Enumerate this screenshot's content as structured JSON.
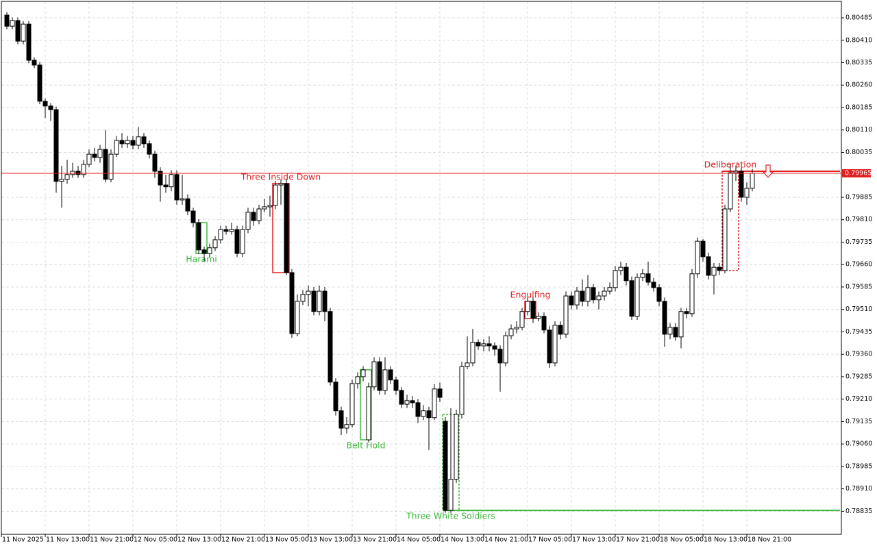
{
  "chart_data": {
    "type": "candlestick",
    "open": [
      0.80494,
      0.80457,
      0.80476,
      0.80407,
      0.80464,
      0.80343,
      0.80327,
      0.80206,
      0.8019,
      0.80178,
      0.79938,
      0.79945,
      0.79961,
      0.79972,
      0.79961,
      0.79995,
      0.80029,
      0.80018,
      0.80045,
      0.79945,
      0.80029,
      0.80075,
      0.80064,
      0.80075,
      0.80059,
      0.80087,
      0.80064,
      0.80029,
      0.79972,
      0.79926,
      0.7992,
      0.79961,
      0.79876,
      0.7988,
      0.79839,
      0.798,
      0.79709,
      0.79697,
      0.79716,
      0.79743,
      0.79777,
      0.79771,
      0.79777,
      0.79697,
      0.79777,
      0.79835,
      0.79807,
      0.79846,
      0.79853,
      0.79858,
      0.79926,
      0.79931,
      0.79633,
      0.79429,
      0.79537,
      0.7956,
      0.79571,
      0.79503,
      0.79571,
      0.79503,
      0.79267,
      0.79171,
      0.79113,
      0.79125,
      0.79262,
      0.79285,
      0.79074,
      0.79251,
      0.79335,
      0.79239,
      0.79308,
      0.79274,
      0.79239,
      0.79193,
      0.79205,
      0.79198,
      0.79152,
      0.79171,
      0.79148,
      0.79244,
      0.79136,
      0.78838,
      0.78942,
      0.79159,
      0.79319,
      0.79331,
      0.794,
      0.79388,
      0.79395,
      0.79388,
      0.79377,
      0.79331,
      0.79422,
      0.79445,
      0.7945,
      0.79503,
      0.79537,
      0.7948,
      0.79487,
      0.79441,
      0.79331,
      0.79457,
      0.79427,
      0.79555,
      0.79525,
      0.79571,
      0.79537,
      0.79583,
      0.79542,
      0.79555,
      0.79571,
      0.79583,
      0.7964,
      0.79651,
      0.79606,
      0.79487,
      0.79617,
      0.79629,
      0.79601,
      0.79583,
      0.79537,
      0.79427,
      0.7945,
      0.79418,
      0.79503,
      0.79496,
      0.79629,
      0.79738,
      0.79686,
      0.79624,
      0.79651,
      0.7964,
      0.79846,
      0.79967,
      0.79972,
      0.79885,
      0.79915
    ],
    "high": [
      0.80504,
      0.80486,
      0.80486,
      0.80474,
      0.80474,
      0.80353,
      0.80337,
      0.80216,
      0.802,
      0.80188,
      0.7999,
      0.8001,
      0.8,
      0.7999,
      0.8001,
      0.80045,
      0.8005,
      0.8006,
      0.8011,
      0.80045,
      0.8009,
      0.801,
      0.8009,
      0.8009,
      0.8012,
      0.801,
      0.80075,
      0.8004,
      0.79985,
      0.7996,
      0.79975,
      0.79975,
      0.7996,
      0.79895,
      0.7985,
      0.79812,
      0.7972,
      0.7973,
      0.79755,
      0.7979,
      0.7979,
      0.798,
      0.7979,
      0.7979,
      0.7985,
      0.7985,
      0.7986,
      0.7988,
      0.7989,
      0.7994,
      0.79945,
      0.79945,
      0.79645,
      0.7956,
      0.79575,
      0.7959,
      0.79585,
      0.7959,
      0.79585,
      0.79515,
      0.7928,
      0.79185,
      0.7915,
      0.79275,
      0.793,
      0.7932,
      0.79265,
      0.7935,
      0.7935,
      0.7935,
      0.7932,
      0.79285,
      0.7925,
      0.79225,
      0.7922,
      0.7921,
      0.7919,
      0.79185,
      0.7926,
      0.79265,
      0.7915,
      0.7918,
      0.79175,
      0.79335,
      0.7942,
      0.79445,
      0.7941,
      0.7941,
      0.7942,
      0.794,
      0.7939,
      0.79435,
      0.7946,
      0.7947,
      0.79515,
      0.7955,
      0.7955,
      0.795,
      0.795,
      0.79455,
      0.7947,
      0.7947,
      0.7957,
      0.7957,
      0.79585,
      0.7961,
      0.79625,
      0.79595,
      0.7957,
      0.79585,
      0.796,
      0.79655,
      0.7967,
      0.79665,
      0.7962,
      0.7963,
      0.79645,
      0.7967,
      0.79615,
      0.79595,
      0.7955,
      0.79465,
      0.79465,
      0.79515,
      0.79515,
      0.79645,
      0.7975,
      0.79745,
      0.797,
      0.79665,
      0.79665,
      0.7986,
      0.79995,
      0.7999,
      0.79985,
      0.79935,
      0.7998
    ],
    "low": [
      0.80447,
      0.80447,
      0.80397,
      0.80397,
      0.80333,
      0.80317,
      0.80196,
      0.8015,
      0.8014,
      0.799,
      0.7985,
      0.7993,
      0.7995,
      0.7995,
      0.7995,
      0.79985,
      0.80005,
      0.8,
      0.79935,
      0.79935,
      0.8002,
      0.8005,
      0.8005,
      0.80045,
      0.80045,
      0.8005,
      0.80015,
      0.7995,
      0.7987,
      0.799,
      0.79905,
      0.7986,
      0.7986,
      0.79825,
      0.79785,
      0.79695,
      0.7967,
      0.79685,
      0.79705,
      0.7973,
      0.7976,
      0.7976,
      0.79685,
      0.79685,
      0.79765,
      0.7979,
      0.79795,
      0.79835,
      0.7982,
      0.79845,
      0.7986,
      0.79625,
      0.79415,
      0.7942,
      0.79525,
      0.7952,
      0.7949,
      0.7949,
      0.7947,
      0.79255,
      0.79155,
      0.7909,
      0.79095,
      0.79115,
      0.79245,
      0.7927,
      0.79065,
      0.7924,
      0.79225,
      0.79225,
      0.7926,
      0.79225,
      0.7918,
      0.7918,
      0.7918,
      0.7913,
      0.7914,
      0.7904,
      0.7914,
      0.792,
      0.7883,
      0.7883,
      0.7893,
      0.79145,
      0.7931,
      0.7932,
      0.79375,
      0.7937,
      0.7937,
      0.79355,
      0.79235,
      0.7932,
      0.7941,
      0.7943,
      0.7944,
      0.7949,
      0.79465,
      0.7947,
      0.7943,
      0.79315,
      0.7932,
      0.7941,
      0.79415,
      0.7951,
      0.7951,
      0.7952,
      0.7952,
      0.7953,
      0.7951,
      0.7954,
      0.7956,
      0.7957,
      0.79625,
      0.7959,
      0.79475,
      0.79475,
      0.79605,
      0.7959,
      0.7957,
      0.7952,
      0.79385,
      0.7941,
      0.79405,
      0.7938,
      0.7948,
      0.79485,
      0.79615,
      0.7967,
      0.7961,
      0.7956,
      0.79625,
      0.7963,
      0.79835,
      0.7994,
      0.7987,
      0.7986,
      0.79905
    ],
    "close": [
      0.80457,
      0.80476,
      0.80407,
      0.80464,
      0.80343,
      0.80327,
      0.80206,
      0.8019,
      0.80178,
      0.79938,
      0.79945,
      0.79961,
      0.79972,
      0.79961,
      0.79995,
      0.80029,
      0.80018,
      0.80045,
      0.79945,
      0.80029,
      0.80075,
      0.80064,
      0.80075,
      0.80059,
      0.80087,
      0.80064,
      0.80029,
      0.79972,
      0.79926,
      0.7992,
      0.79961,
      0.79876,
      0.7988,
      0.79839,
      0.798,
      0.79709,
      0.79697,
      0.79716,
      0.79743,
      0.79777,
      0.79771,
      0.79777,
      0.79697,
      0.79777,
      0.79835,
      0.79807,
      0.79846,
      0.79853,
      0.79858,
      0.79926,
      0.79931,
      0.79633,
      0.79429,
      0.79537,
      0.7956,
      0.79571,
      0.79503,
      0.79571,
      0.79503,
      0.79267,
      0.79171,
      0.79113,
      0.79125,
      0.79262,
      0.79285,
      0.79308,
      0.79251,
      0.79335,
      0.79239,
      0.79308,
      0.79274,
      0.79239,
      0.79193,
      0.79205,
      0.79198,
      0.79152,
      0.79171,
      0.79148,
      0.79244,
      0.79216,
      0.78838,
      0.78942,
      0.79159,
      0.79319,
      0.79331,
      0.794,
      0.79388,
      0.79395,
      0.79388,
      0.79377,
      0.79331,
      0.79422,
      0.79445,
      0.7945,
      0.79503,
      0.79537,
      0.7948,
      0.79487,
      0.79441,
      0.79331,
      0.79457,
      0.79427,
      0.79555,
      0.79525,
      0.79571,
      0.79537,
      0.79583,
      0.79542,
      0.79555,
      0.79571,
      0.79583,
      0.7964,
      0.79651,
      0.79606,
      0.79487,
      0.79617,
      0.79629,
      0.79601,
      0.79583,
      0.79537,
      0.79427,
      0.7945,
      0.79418,
      0.79503,
      0.79496,
      0.79629,
      0.79738,
      0.79686,
      0.79624,
      0.79651,
      0.7964,
      0.79846,
      0.79967,
      0.79972,
      0.79885,
      0.79915,
      0.79965
    ],
    "up_color": "#ffffff",
    "down_color": "#000000",
    "xlim": [
      -1,
      152.25
    ],
    "ylim": [
      0.78758,
      0.8054
    ],
    "grid": true,
    "xticks": [
      {
        "value": -1,
        "label": "11 Nov 2025"
      },
      {
        "value": 7,
        "label": "11 Nov 13:00"
      },
      {
        "value": 15,
        "label": "11 Nov 21:00"
      },
      {
        "value": 23,
        "label": "12 Nov 05:00"
      },
      {
        "value": 31,
        "label": "12 Nov 13:00"
      },
      {
        "value": 39,
        "label": "12 Nov 21:00"
      },
      {
        "value": 47,
        "label": "13 Nov 05:00"
      },
      {
        "value": 55,
        "label": "13 Nov 13:00"
      },
      {
        "value": 63,
        "label": "13 Nov 21:00"
      },
      {
        "value": 71,
        "label": "14 Nov 05:00"
      },
      {
        "value": 79,
        "label": "14 Nov 13:00"
      },
      {
        "value": 87,
        "label": "14 Nov 21:00"
      },
      {
        "value": 95,
        "label": "17 Nov 05:00"
      },
      {
        "value": 103,
        "label": "17 Nov 13:00"
      },
      {
        "value": 111,
        "label": "17 Nov 21:00"
      },
      {
        "value": 119,
        "label": "18 Nov 05:00"
      },
      {
        "value": 127,
        "label": "18 Nov 13:00"
      },
      {
        "value": 135,
        "label": "18 Nov 21:00"
      }
    ],
    "yticks": [
      0.80485,
      {
        "value": 0.8041,
        "label": "0.80410"
      },
      0.80335,
      {
        "value": 0.8026,
        "label": "0.80260"
      },
      0.80185,
      {
        "value": 0.8011,
        "label": "0.80110"
      },
      0.80035,
      0.79885,
      {
        "value": 0.7981,
        "label": "0.79810"
      },
      0.79735,
      {
        "value": 0.7966,
        "label": "0.79660"
      },
      0.79585,
      {
        "value": 0.7951,
        "label": "0.79510"
      },
      0.79435,
      {
        "value": 0.7936,
        "label": "0.79360"
      },
      0.79285,
      {
        "value": 0.7921,
        "label": "0.79210"
      },
      0.79135,
      {
        "value": 0.7906,
        "label": "0.79060"
      },
      0.78985,
      {
        "value": 0.7891,
        "label": "0.78910"
      },
      0.78835
    ],
    "current_price": 0.79965,
    "current_price_color": "#e02020",
    "patterns": [
      {
        "name": "Harami",
        "color": "#3cb83c"
      },
      {
        "name": "Three Inside Down",
        "color": "#e02020"
      },
      {
        "name": "Belt Hold",
        "color": "#3cb83c"
      },
      {
        "name": "Three White Soldiers",
        "color": "#3cb83c"
      },
      {
        "name": "Engulfing",
        "color": "#e02020"
      },
      {
        "name": "Deliberation",
        "color": "#e02020"
      }
    ]
  }
}
